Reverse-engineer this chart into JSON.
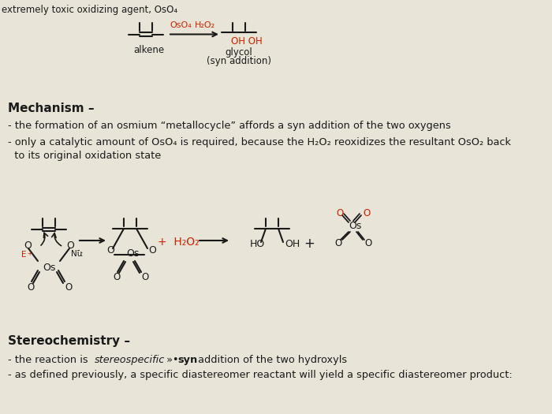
{
  "bg_color": "#d8d4cc",
  "paper_color": "#e8e4d8",
  "text_color": "#1a1a1a",
  "red_color": "#cc2200",
  "dark_red": "#aa1100",
  "bg_top_text": "extremely toxic oxidizing agent, OsO₄",
  "mechanism_header": "Mechanism –",
  "mech_line1": "- the formation of an osmium “metallocycle” affords a syn addition of the two oxygens",
  "mech_line2a": "- only a catalytic amount of OsO₄ is required, because the H₂O₂ reoxidizes the resultant OsO₂ back",
  "mech_line2b": "  to its original oxidation state",
  "stereo_header": "Stereochemistry –",
  "stereo_line2": "- as defined previously, a specific diastereomer reactant will yield a specific diastereomer product:"
}
